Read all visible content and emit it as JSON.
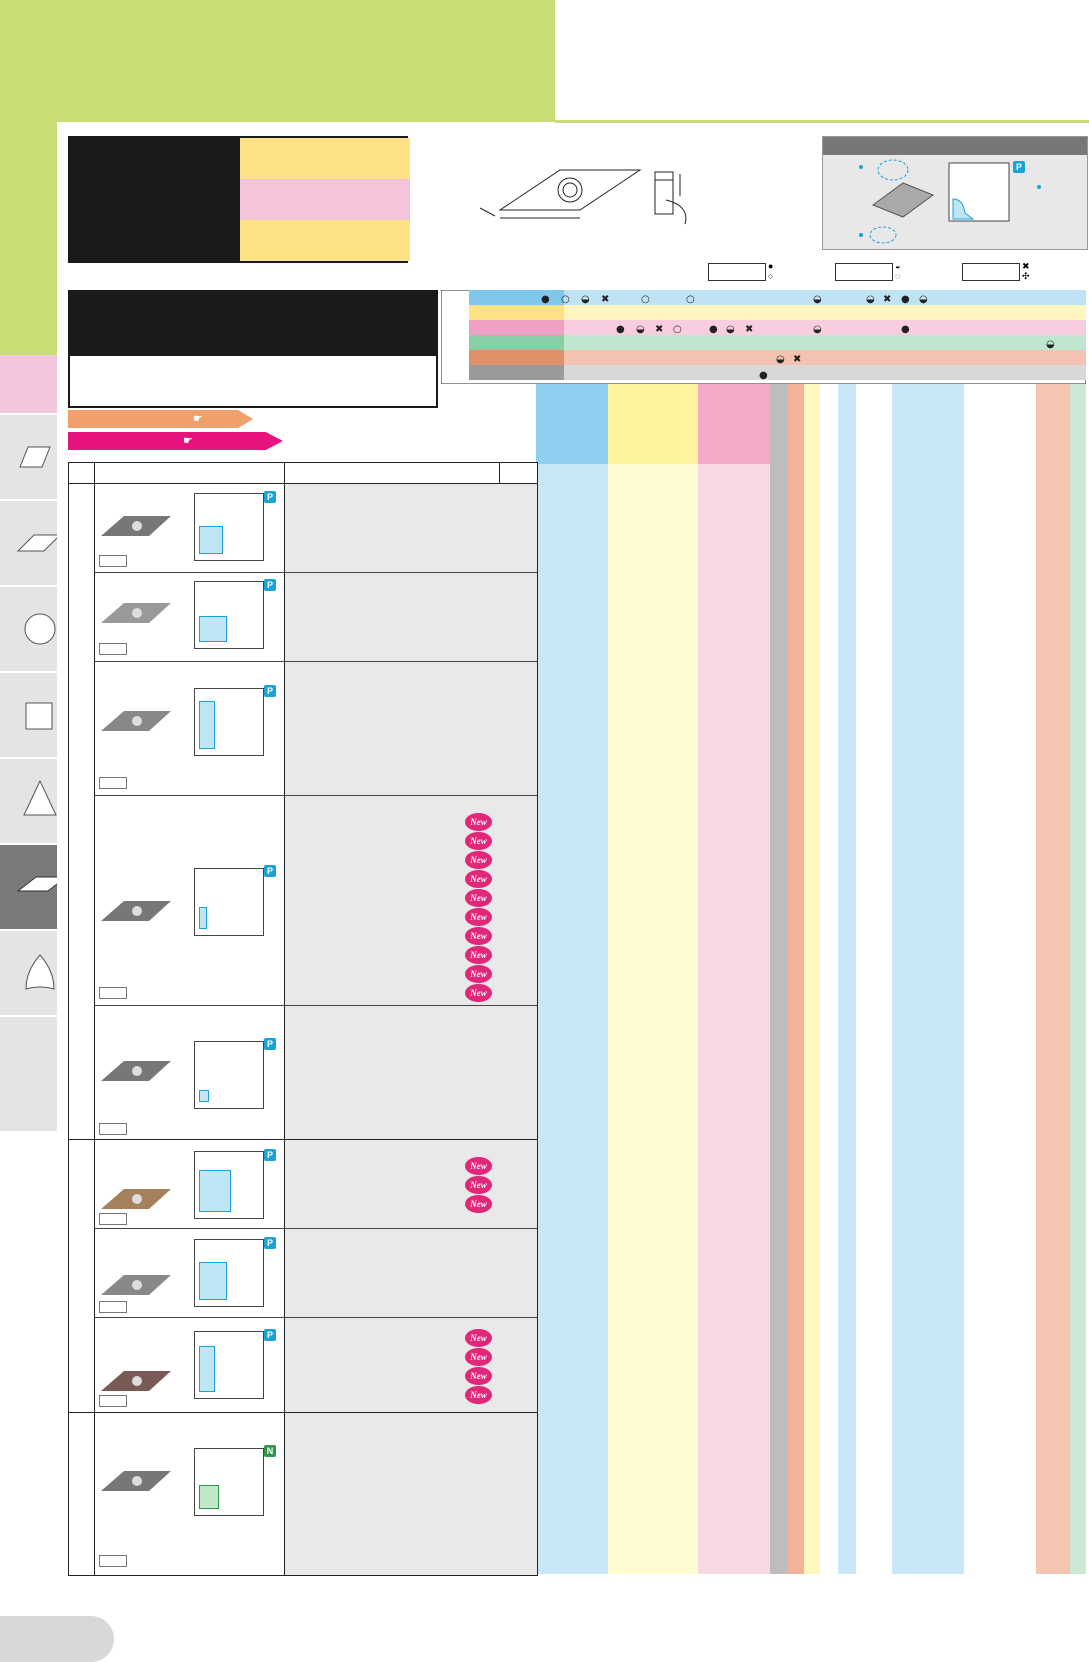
{
  "colors": {
    "accent_green": "#c9dd77",
    "band_yellow": "#fde285",
    "band_pink": "#f5c3da",
    "band_orange": "#f0a06a",
    "band_magenta": "#e6127e",
    "tag_p": "#1aa3d9",
    "tag_n": "#2a9a4a",
    "new_badge": "#e2277a"
  },
  "icons": {
    "sidebar": [
      "parallelogram-icon",
      "rhombus-icon",
      "circle-icon",
      "square-icon",
      "triangle-icon",
      "rhombus-35-icon",
      "trigon-icon"
    ],
    "arrow_pills": [
      "pointing-hand-icon",
      "pointing-hand-icon"
    ]
  },
  "legend": {
    "swatches": [
      "yellow",
      "pink",
      "yellow"
    ]
  },
  "schematic": {
    "tag": "P"
  },
  "rows": [
    {
      "tag": "P",
      "new_count": 0
    },
    {
      "tag": "P",
      "new_count": 0
    },
    {
      "tag": "P",
      "new_count": 0
    },
    {
      "tag": "P",
      "new_count": 10
    },
    {
      "tag": "P",
      "new_count": 0
    },
    {
      "tag": "P",
      "new_count": 3
    },
    {
      "tag": "P",
      "new_count": 0
    },
    {
      "tag": "P",
      "new_count": 4
    },
    {
      "tag": "N",
      "new_count": 0
    }
  ],
  "new_label": "New"
}
